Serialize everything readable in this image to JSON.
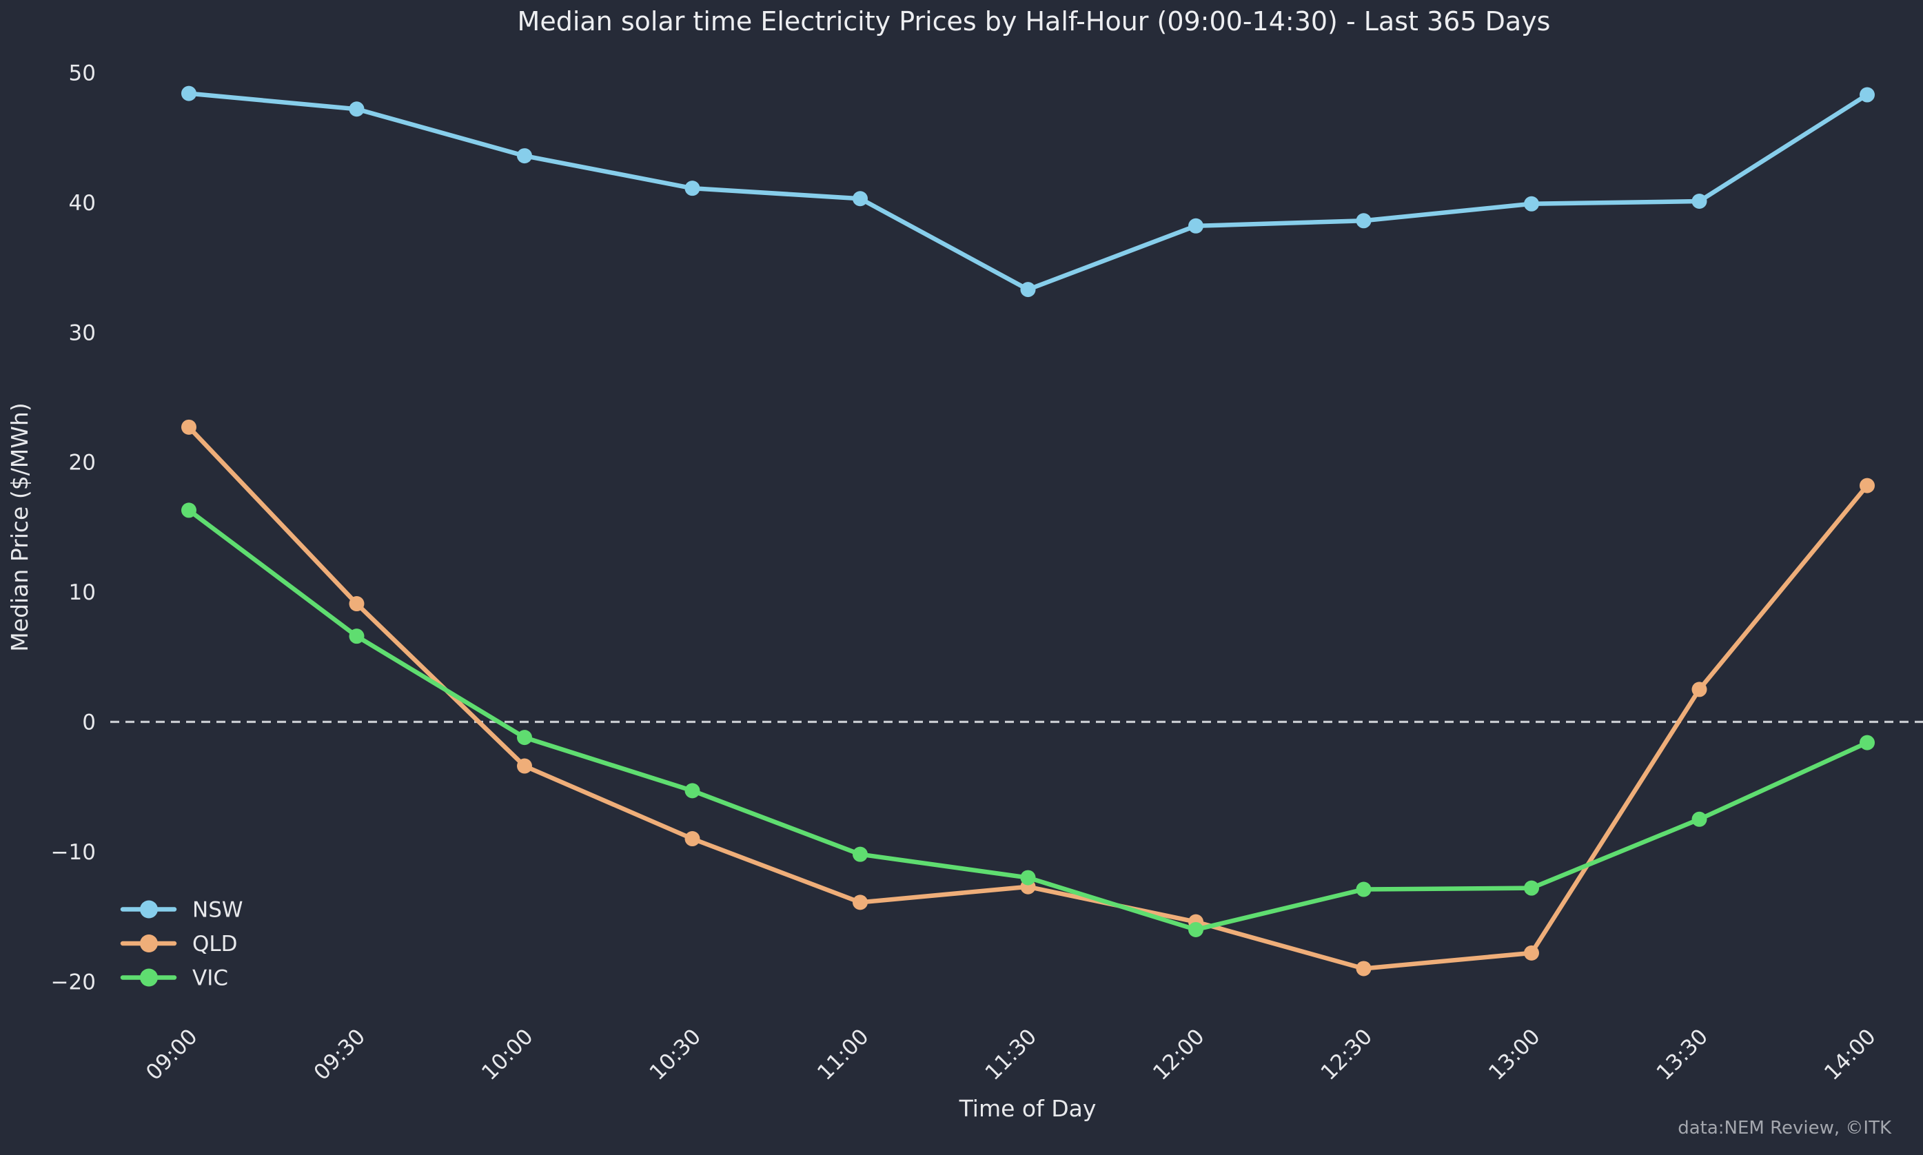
{
  "title": "Median solar time Electricity Prices by Half-Hour (09:00-14:30) - Last 365 Days",
  "x_axis_label": "Time of Day",
  "y_axis_label": "Median Price ($/MWh)",
  "attribution": "data:NEM Review, ©ITK",
  "colors": {
    "background": "#262B38",
    "text": "#E8E9EC",
    "muted_text": "#A4A7AE",
    "zero_line": "#C8CBD0",
    "nsw": "#87CEEB",
    "qld": "#EFAE79",
    "vic": "#5FDD70"
  },
  "chart_data": {
    "type": "line",
    "categories": [
      "09:00",
      "09:30",
      "10:00",
      "10:30",
      "11:00",
      "11:30",
      "12:00",
      "12:30",
      "13:00",
      "13:30",
      "14:00"
    ],
    "series": [
      {
        "name": "NSW",
        "color": "#87CEEB",
        "values": [
          48.4,
          47.2,
          43.6,
          41.1,
          40.3,
          33.3,
          38.2,
          38.6,
          39.9,
          40.1,
          48.3
        ]
      },
      {
        "name": "QLD",
        "color": "#EFAE79",
        "values": [
          22.7,
          9.1,
          -3.4,
          -9.0,
          -13.9,
          -12.7,
          -15.4,
          -19.0,
          -17.8,
          2.5,
          18.2
        ]
      },
      {
        "name": "VIC",
        "color": "#5FDD70",
        "values": [
          16.3,
          6.6,
          -1.2,
          -5.3,
          -10.2,
          -12.0,
          -16.0,
          -12.9,
          -12.8,
          -7.5,
          -1.6
        ]
      }
    ],
    "title": "Median solar time Electricity Prices by Half-Hour (09:00-14:30) - Last 365 Days",
    "xlabel": "Time of Day",
    "ylabel": "Median Price ($/MWh)",
    "yticks": [
      50,
      40,
      30,
      20,
      10,
      0,
      -10,
      -20
    ],
    "ylim": [
      -23,
      52
    ],
    "grid": false,
    "zero_line": "dashed",
    "legend_position": "lower-left",
    "marker": "circle"
  }
}
